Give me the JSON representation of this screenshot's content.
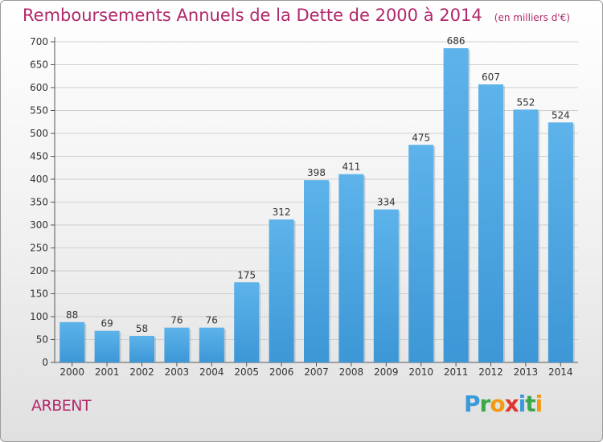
{
  "title": "Remboursements Annuels de la Dette de 2000 à 2014",
  "subtitle": "(en milliers d'€)",
  "location": "ARBENT",
  "logo": {
    "text": "Proxiti",
    "letters": [
      {
        "ch": "P",
        "color": "#3a9ad9"
      },
      {
        "ch": "r",
        "color": "#3aa84a"
      },
      {
        "ch": "o",
        "color": "#f29b12"
      },
      {
        "ch": "x",
        "color": "#e2342c"
      },
      {
        "ch": "i",
        "color": "#3a9ad9"
      },
      {
        "ch": "t",
        "color": "#3aa84a"
      },
      {
        "ch": "i",
        "color": "#f29b12"
      }
    ]
  },
  "colors": {
    "bar": "#3d97d6",
    "bar_light": "#5db3ea",
    "text_accent": "#b0286a",
    "grid": "#cfcfcf"
  },
  "chart_data": {
    "type": "bar",
    "title": "Remboursements Annuels de la Dette de 2000 à 2014",
    "subtitle": "(en milliers d'€)",
    "categories": [
      "2000",
      "2001",
      "2002",
      "2003",
      "2004",
      "2005",
      "2006",
      "2007",
      "2008",
      "2009",
      "2010",
      "2011",
      "2012",
      "2013",
      "2014"
    ],
    "values": [
      88,
      69,
      58,
      76,
      76,
      175,
      312,
      398,
      411,
      334,
      475,
      686,
      607,
      552,
      524
    ],
    "data_labels": [
      "88",
      "69",
      "58",
      "76",
      "76",
      "175",
      "312",
      "398",
      "411",
      "334",
      "475",
      "686",
      "607",
      "552",
      "524"
    ],
    "ylim": [
      0,
      700
    ],
    "yticks": [
      0,
      50,
      100,
      150,
      200,
      250,
      300,
      350,
      400,
      450,
      500,
      550,
      600,
      650,
      700
    ],
    "ytick_labels": [
      "0",
      "50",
      "100",
      "150",
      "200",
      "250",
      "300",
      "350",
      "400",
      "450",
      "500",
      "550",
      "600",
      "650",
      "700"
    ],
    "grid": true,
    "legend": "none"
  }
}
